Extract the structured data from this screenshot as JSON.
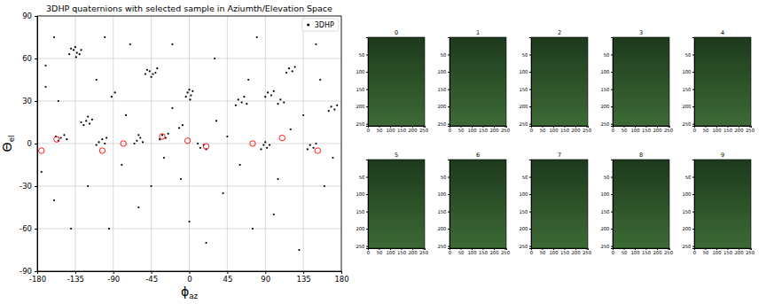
{
  "chart_data": [
    {
      "type": "scatter",
      "title": "3DHP quaternions with selected sample in Aziumth/Elevation Space",
      "x_label": "ϕaz",
      "y_label": "Θel",
      "xlim": [
        -180,
        180
      ],
      "ylim": [
        -90,
        90
      ],
      "xticks": [
        -180,
        -135,
        -90,
        -45,
        0,
        45,
        90,
        135,
        180
      ],
      "yticks": [
        -90,
        -60,
        -30,
        0,
        30,
        60,
        90
      ],
      "grid": true,
      "legend": "upper right",
      "series": [
        {
          "name": "3DHP",
          "color": "#000000",
          "marker": "dot",
          "x": [
            -137,
            -133,
            -140,
            -130,
            -135,
            -128,
            -142,
            -134,
            -47,
            -43,
            -50,
            -40,
            -45,
            -52,
            -38,
            -2,
            2,
            0,
            -4,
            4,
            1,
            -122,
            -118,
            -125,
            -115,
            -120,
            -128,
            -152,
            -148,
            -155,
            -145,
            -158,
            -107,
            -103,
            -110,
            -100,
            -98,
            -62,
            -58,
            -65,
            -55,
            -60,
            -32,
            -28,
            -35,
            -25,
            13,
            17,
            20,
            10,
            58,
            62,
            65,
            55,
            68,
            93,
            97,
            100,
            90,
            118,
            122,
            125,
            115,
            108,
            112,
            105,
            168,
            172,
            175,
            165,
            88,
            92,
            95,
            85,
            90,
            143,
            147,
            150,
            140,
            -8,
            -12,
            -88,
            -92,
            32,
            -170,
            -160,
            -100,
            -70,
            -20,
            30,
            80,
            150,
            -175,
            -120,
            -60,
            -10,
            40,
            100,
            160,
            -140,
            20,
            130,
            -80,
            60,
            -30,
            120,
            -170,
            0,
            70,
            -110,
            -160,
            170,
            45,
            -75,
            135,
            -20,
            -155,
            155,
            -95,
            75,
            -45,
            105
          ],
          "y": [
            66,
            64,
            67,
            63,
            68,
            66,
            63,
            61,
            51,
            49,
            52,
            50,
            47,
            49,
            53,
            36,
            34,
            38,
            33,
            37,
            31,
            16,
            14,
            13,
            17,
            19,
            15,
            4,
            6,
            2,
            3,
            5,
            1,
            3,
            -1,
            0,
            4,
            2,
            4,
            0,
            1,
            6,
            6,
            4,
            3,
            7,
            -3,
            -1,
            -4,
            0,
            31,
            29,
            33,
            27,
            28,
            36,
            34,
            37,
            33,
            53,
            51,
            54,
            50,
            31,
            29,
            28,
            26,
            24,
            27,
            23,
            -1,
            -3,
            -1,
            -4,
            1,
            -1,
            -3,
            0,
            -4,
            13,
            11,
            36,
            33,
            16,
            40,
            75,
            75,
            70,
            70,
            60,
            75,
            70,
            -20,
            -30,
            -45,
            -25,
            -35,
            -50,
            -30,
            -60,
            -70,
            -75,
            -15,
            -15,
            -10,
            10,
            55,
            -55,
            45,
            45,
            -40,
            -10,
            5,
            20,
            20,
            25,
            30,
            45,
            -60,
            -60,
            -30,
            -25
          ]
        },
        {
          "color": "#ff0000",
          "marker": "open-circle",
          "x": [
            -175,
            -157,
            -103,
            -78,
            -32,
            -2,
            20,
            75,
            110,
            152
          ],
          "y": [
            -5,
            3,
            -5,
            0,
            5,
            2,
            -2,
            0,
            4,
            -5
          ]
        }
      ]
    },
    {
      "type": "image",
      "title": "0",
      "xlim": [
        0,
        256
      ],
      "ylim": [
        256,
        0
      ],
      "xticks": [
        0,
        50,
        100,
        150,
        200,
        250
      ],
      "yticks": [
        50,
        100,
        150,
        200,
        250
      ]
    },
    {
      "type": "image",
      "title": "1",
      "xlim": [
        0,
        256
      ],
      "ylim": [
        256,
        0
      ],
      "xticks": [
        0,
        50,
        100,
        150,
        200,
        250
      ],
      "yticks": [
        50,
        100,
        150,
        200,
        250
      ]
    },
    {
      "type": "image",
      "title": "2",
      "xlim": [
        0,
        256
      ],
      "ylim": [
        256,
        0
      ],
      "xticks": [
        0,
        50,
        100,
        150,
        200,
        250
      ],
      "yticks": [
        50,
        100,
        150,
        200,
        250
      ]
    },
    {
      "type": "image",
      "title": "3",
      "xlim": [
        0,
        256
      ],
      "ylim": [
        256,
        0
      ],
      "xticks": [
        0,
        50,
        100,
        150,
        200,
        250
      ],
      "yticks": [
        50,
        100,
        150,
        200,
        250
      ]
    },
    {
      "type": "image",
      "title": "4",
      "xlim": [
        0,
        256
      ],
      "ylim": [
        256,
        0
      ],
      "xticks": [
        0,
        50,
        100,
        150,
        200,
        250
      ],
      "yticks": [
        50,
        100,
        150,
        200,
        250
      ]
    },
    {
      "type": "image",
      "title": "5",
      "xlim": [
        0,
        256
      ],
      "ylim": [
        256,
        0
      ],
      "xticks": [
        0,
        50,
        100,
        150,
        200,
        250
      ],
      "yticks": [
        50,
        100,
        150,
        200,
        250
      ]
    },
    {
      "type": "image",
      "title": "6",
      "xlim": [
        0,
        256
      ],
      "ylim": [
        256,
        0
      ],
      "xticks": [
        0,
        50,
        100,
        150,
        200,
        250
      ],
      "yticks": [
        50,
        100,
        150,
        200,
        250
      ]
    },
    {
      "type": "image",
      "title": "7",
      "xlim": [
        0,
        256
      ],
      "ylim": [
        256,
        0
      ],
      "xticks": [
        0,
        50,
        100,
        150,
        200,
        250
      ],
      "yticks": [
        50,
        100,
        150,
        200,
        250
      ]
    },
    {
      "type": "image",
      "title": "8",
      "xlim": [
        0,
        256
      ],
      "ylim": [
        256,
        0
      ],
      "xticks": [
        0,
        50,
        100,
        150,
        200,
        250
      ],
      "yticks": [
        50,
        100,
        150,
        200,
        250
      ]
    },
    {
      "type": "image",
      "title": "9",
      "xlim": [
        0,
        256
      ],
      "ylim": [
        256,
        0
      ],
      "xticks": [
        0,
        50,
        100,
        150,
        200,
        250
      ],
      "yticks": [
        50,
        100,
        150,
        200,
        250
      ]
    }
  ]
}
